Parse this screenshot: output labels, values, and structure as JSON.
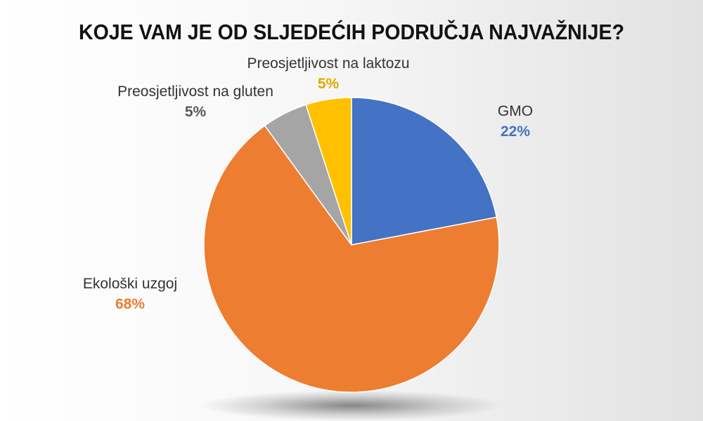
{
  "chart_data": {
    "type": "pie",
    "title": "KOJE VAM JE OD SLJEDEĆIH PODRUČJA NAJVAŽNIJE?",
    "slices": [
      {
        "label": "GMO",
        "value": 22,
        "value_label": "22%",
        "color": "#4472C4"
      },
      {
        "label": "Ekološki uzgoj",
        "value": 68,
        "value_label": "68%",
        "color": "#ED7D31"
      },
      {
        "label": "Preosjetljivost na gluten",
        "value": 5,
        "value_label": "5%",
        "color": "#A5A5A5"
      },
      {
        "label": "Preosjetljivost na laktozu",
        "value": 5,
        "value_label": "5%",
        "color": "#FFC000"
      }
    ],
    "start_angle": "12 o'clock, clockwise",
    "legend": "none (labels outside slices)"
  }
}
